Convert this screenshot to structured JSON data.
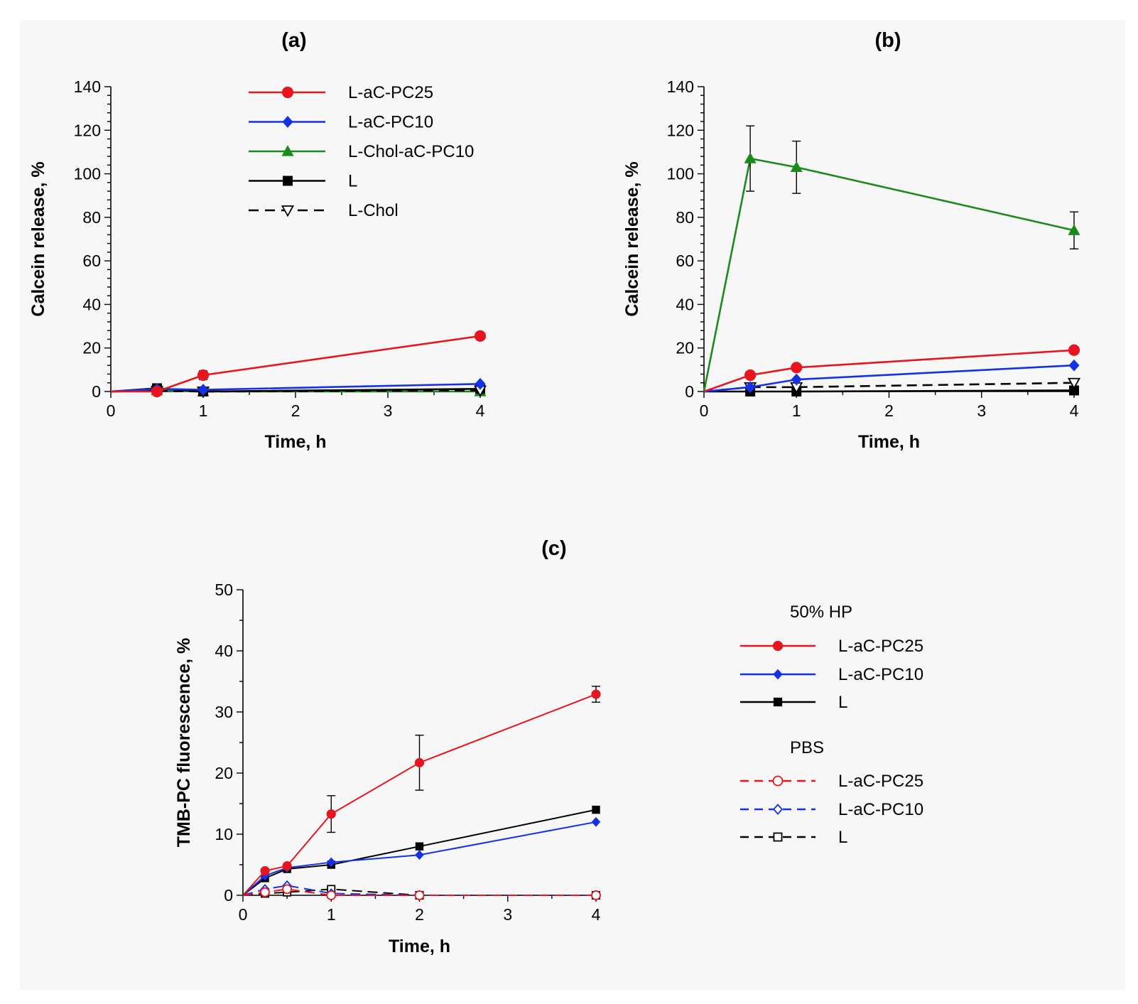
{
  "series_styles": {
    "L-aC-PC25": {
      "color": "#e8141e",
      "marker": "circle",
      "filled": true
    },
    "L-aC-PC10": {
      "color": "#1431e8",
      "marker": "diamond",
      "filled": true
    },
    "L-Chol-aC-PC10": {
      "color": "#1a8a1a",
      "marker": "triangle-up",
      "filled": true
    },
    "L": {
      "color": "#000000",
      "marker": "square",
      "filled": true
    },
    "L-Chol": {
      "color": "#000000",
      "marker": "triangle-down",
      "filled": false
    }
  },
  "chart_data": [
    {
      "id": "a",
      "type": "line",
      "title": "(a)",
      "xlabel": "Time, h",
      "ylabel": "Calcein release, %",
      "xlim": [
        0,
        4
      ],
      "ylim": [
        0,
        140
      ],
      "x_ticks": [
        0,
        1,
        2,
        3,
        4
      ],
      "y_ticks": [
        0,
        20,
        40,
        60,
        80,
        100,
        120,
        140
      ],
      "legend": {
        "placement": "top-center",
        "entries": [
          {
            "label": "L-aC-PC25",
            "color": "#e8141e",
            "marker": "circle",
            "filled": true,
            "dashed": false
          },
          {
            "label": "L-aC-PC10",
            "color": "#1431e8",
            "marker": "diamond",
            "filled": true,
            "dashed": false
          },
          {
            "label": "L-Chol-aC-PC10",
            "color": "#1a8a1a",
            "marker": "triangle-up",
            "filled": true,
            "dashed": false
          },
          {
            "label": "L",
            "color": "#000000",
            "marker": "square",
            "filled": true,
            "dashed": false
          },
          {
            "label": "L-Chol",
            "color": "#000000",
            "marker": "triangle-down",
            "filled": false,
            "dashed": true
          }
        ]
      },
      "series": [
        {
          "name": "L-Chol-aC-PC10",
          "color": "#1a8a1a",
          "marker": "triangle-up",
          "filled": true,
          "dashed": false,
          "x": [
            0,
            0.5,
            1,
            4
          ],
          "y": [
            0,
            0.5,
            0,
            0
          ],
          "err": [
            0,
            0,
            0,
            0
          ]
        },
        {
          "name": "L",
          "color": "#000000",
          "marker": "square",
          "filled": true,
          "dashed": false,
          "x": [
            0,
            0.5,
            1,
            4
          ],
          "y": [
            0,
            1.5,
            0,
            1.2
          ],
          "err": [
            0,
            0,
            0,
            0
          ]
        },
        {
          "name": "L-Chol",
          "color": "#000000",
          "marker": "triangle-down",
          "filled": false,
          "dashed": true,
          "x": [
            0,
            0.5,
            1,
            4
          ],
          "y": [
            0,
            0.3,
            0,
            0.5
          ],
          "err": [
            0,
            0,
            0,
            0
          ]
        },
        {
          "name": "L-aC-PC10",
          "color": "#1431e8",
          "marker": "diamond",
          "filled": true,
          "dashed": false,
          "x": [
            0,
            0.5,
            1,
            4
          ],
          "y": [
            0,
            1.2,
            0.8,
            3.5
          ],
          "err": [
            0,
            0,
            0,
            0
          ]
        },
        {
          "name": "L-aC-PC25",
          "color": "#e8141e",
          "marker": "circle",
          "filled": true,
          "dashed": false,
          "x": [
            0,
            0.5,
            1,
            4
          ],
          "y": [
            0,
            0,
            7.5,
            25.5
          ],
          "err": [
            0,
            0,
            2,
            0
          ]
        }
      ]
    },
    {
      "id": "b",
      "type": "line",
      "title": "(b)",
      "xlabel": "Time, h",
      "ylabel": "Calcein release, %",
      "xlim": [
        0,
        4
      ],
      "ylim": [
        0,
        140
      ],
      "x_ticks": [
        0,
        1,
        2,
        3,
        4
      ],
      "y_ticks": [
        0,
        20,
        40,
        60,
        80,
        100,
        120,
        140
      ],
      "series": [
        {
          "name": "L",
          "color": "#000000",
          "marker": "square",
          "filled": true,
          "dashed": false,
          "x": [
            0,
            0.5,
            1,
            4
          ],
          "y": [
            0,
            0,
            0,
            0.5
          ],
          "err": [
            0,
            0,
            0,
            0
          ]
        },
        {
          "name": "L-Chol",
          "color": "#000000",
          "marker": "triangle-down",
          "filled": false,
          "dashed": true,
          "x": [
            0,
            0.5,
            1,
            4
          ],
          "y": [
            0,
            2,
            2,
            4
          ],
          "err": [
            0,
            0,
            0,
            0
          ]
        },
        {
          "name": "L-aC-PC10",
          "color": "#1431e8",
          "marker": "diamond",
          "filled": true,
          "dashed": false,
          "x": [
            0,
            0.5,
            1,
            4
          ],
          "y": [
            0,
            2,
            5.5,
            12
          ],
          "err": [
            0,
            0,
            0,
            0
          ]
        },
        {
          "name": "L-aC-PC25",
          "color": "#e8141e",
          "marker": "circle",
          "filled": true,
          "dashed": false,
          "x": [
            0,
            0.5,
            1,
            4
          ],
          "y": [
            0,
            7.5,
            11,
            19
          ],
          "err": [
            0,
            0,
            1.5,
            0
          ]
        },
        {
          "name": "L-Chol-aC-PC10",
          "color": "#1a8a1a",
          "marker": "triangle-up",
          "filled": true,
          "dashed": false,
          "x": [
            0,
            0.5,
            1,
            4
          ],
          "y": [
            0,
            107,
            103,
            74
          ],
          "err": [
            0,
            15,
            12,
            8.5
          ]
        }
      ]
    },
    {
      "id": "c",
      "type": "line",
      "title": "(c)",
      "xlabel": "Time, h",
      "ylabel": "TMB-PC fluorescence, %",
      "xlim": [
        0,
        4
      ],
      "ylim": [
        0,
        50
      ],
      "x_ticks": [
        0,
        1,
        2,
        3,
        4
      ],
      "y_ticks": [
        0,
        10,
        20,
        30,
        40,
        50
      ],
      "legend": {
        "placement": "right",
        "groups": [
          {
            "title": "50% HP",
            "entries": [
              {
                "label": "L-aC-PC25",
                "color": "#e8141e",
                "marker": "circle",
                "filled": true,
                "dashed": false
              },
              {
                "label": "L-aC-PC10",
                "color": "#1431e8",
                "marker": "diamond",
                "filled": true,
                "dashed": false
              },
              {
                "label": "L",
                "color": "#000000",
                "marker": "square",
                "filled": true,
                "dashed": false
              }
            ]
          },
          {
            "title": "PBS",
            "entries": [
              {
                "label": "L-aC-PC25",
                "color": "#e8141e",
                "marker": "circle",
                "filled": false,
                "dashed": true
              },
              {
                "label": "L-aC-PC10",
                "color": "#1431e8",
                "marker": "diamond",
                "filled": false,
                "dashed": true
              },
              {
                "label": "L",
                "color": "#000000",
                "marker": "square",
                "filled": false,
                "dashed": true
              }
            ]
          }
        ]
      },
      "series": [
        {
          "name": "L (PBS)",
          "color": "#000000",
          "marker": "square",
          "filled": false,
          "dashed": true,
          "x": [
            0,
            0.25,
            0.5,
            1,
            2,
            4
          ],
          "y": [
            0,
            0.3,
            0.5,
            1.0,
            0,
            0
          ],
          "err": [
            0,
            0,
            0,
            0,
            0,
            0
          ]
        },
        {
          "name": "L-aC-PC10 (PBS)",
          "color": "#1431e8",
          "marker": "diamond",
          "filled": false,
          "dashed": true,
          "x": [
            0,
            0.25,
            0.5,
            1,
            2,
            4
          ],
          "y": [
            0,
            1.0,
            1.6,
            0.3,
            0,
            0
          ],
          "err": [
            0,
            0,
            0,
            0,
            0,
            0
          ]
        },
        {
          "name": "L-aC-PC25 (PBS)",
          "color": "#e8141e",
          "marker": "circle",
          "filled": false,
          "dashed": true,
          "x": [
            0,
            0.25,
            0.5,
            1,
            2,
            4
          ],
          "y": [
            0,
            0.5,
            1.0,
            0,
            0,
            0
          ],
          "err": [
            0,
            0,
            0,
            0,
            0,
            0
          ]
        },
        {
          "name": "L (50% HP)",
          "color": "#000000",
          "marker": "square",
          "filled": true,
          "dashed": false,
          "x": [
            0,
            0.25,
            0.5,
            1,
            2,
            4
          ],
          "y": [
            0,
            2.8,
            4.3,
            5.0,
            8.0,
            14.0
          ],
          "err": [
            0,
            0,
            0,
            0,
            0,
            0
          ]
        },
        {
          "name": "L-aC-PC10 (50% HP)",
          "color": "#1431e8",
          "marker": "diamond",
          "filled": true,
          "dashed": false,
          "x": [
            0,
            0.25,
            0.5,
            1,
            2,
            4
          ],
          "y": [
            0,
            3.2,
            4.5,
            5.4,
            6.6,
            12.0
          ],
          "err": [
            0,
            0,
            0,
            0,
            0,
            0
          ]
        },
        {
          "name": "L-aC-PC25 (50% HP)",
          "color": "#e8141e",
          "marker": "circle",
          "filled": true,
          "dashed": false,
          "x": [
            0,
            0.25,
            0.5,
            1,
            2,
            4
          ],
          "y": [
            0,
            4.0,
            4.8,
            13.3,
            21.7,
            32.9
          ],
          "err": [
            0,
            0,
            0,
            3.0,
            4.5,
            1.3
          ]
        }
      ]
    }
  ]
}
